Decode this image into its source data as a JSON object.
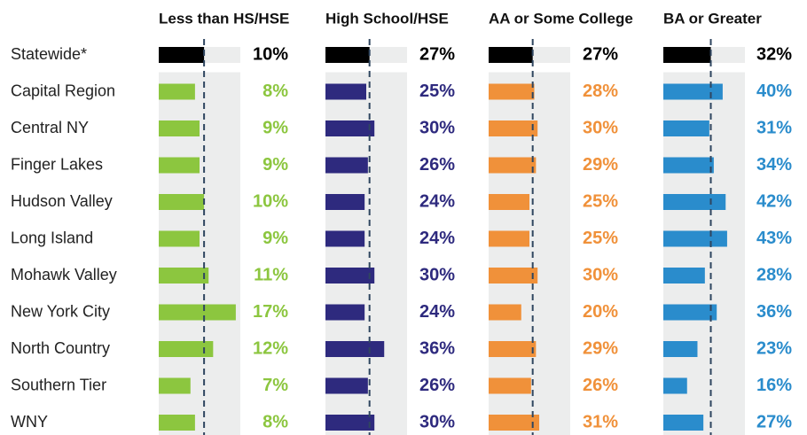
{
  "chart_data": {
    "type": "bar",
    "categories": [
      "Statewide*",
      "Capital Region",
      "Central NY",
      "Finger Lakes",
      "Hudson Valley",
      "Long Island",
      "Mohawk Valley",
      "New York City",
      "North Country",
      "Southern Tier",
      "WNY"
    ],
    "highlight_color": "#000000",
    "series": [
      {
        "name": "Less than HS/HSE",
        "color": "#8cc63f",
        "xlim": [
          0,
          18
        ],
        "values": [
          10,
          8,
          9,
          9,
          10,
          9,
          11,
          17,
          12,
          7,
          8
        ],
        "value_labels": [
          "10%",
          "8%",
          "9%",
          "9%",
          "10%",
          "9%",
          "11%",
          "17%",
          "12%",
          "7%",
          "8%"
        ]
      },
      {
        "name": "High School/HSE",
        "color": "#2e2a7e",
        "xlim": [
          0,
          50
        ],
        "values": [
          27,
          25,
          30,
          26,
          24,
          24,
          30,
          24,
          36,
          26,
          30
        ],
        "value_labels": [
          "27%",
          "25%",
          "30%",
          "26%",
          "24%",
          "24%",
          "30%",
          "24%",
          "36%",
          "26%",
          "30%"
        ]
      },
      {
        "name": "AA or Some College",
        "color": "#f0913a",
        "xlim": [
          0,
          50
        ],
        "values": [
          27,
          28,
          30,
          29,
          25,
          25,
          30,
          20,
          29,
          26,
          31
        ],
        "value_labels": [
          "27%",
          "28%",
          "30%",
          "29%",
          "25%",
          "25%",
          "30%",
          "20%",
          "29%",
          "26%",
          "31%"
        ]
      },
      {
        "name": "BA or Greater",
        "color": "#2a8ccc",
        "xlim": [
          0,
          55
        ],
        "values": [
          32,
          40,
          31,
          34,
          42,
          43,
          28,
          36,
          23,
          16,
          27
        ],
        "value_labels": [
          "32%",
          "40%",
          "31%",
          "34%",
          "42%",
          "43%",
          "28%",
          "36%",
          "23%",
          "16%",
          "27%"
        ]
      }
    ]
  }
}
